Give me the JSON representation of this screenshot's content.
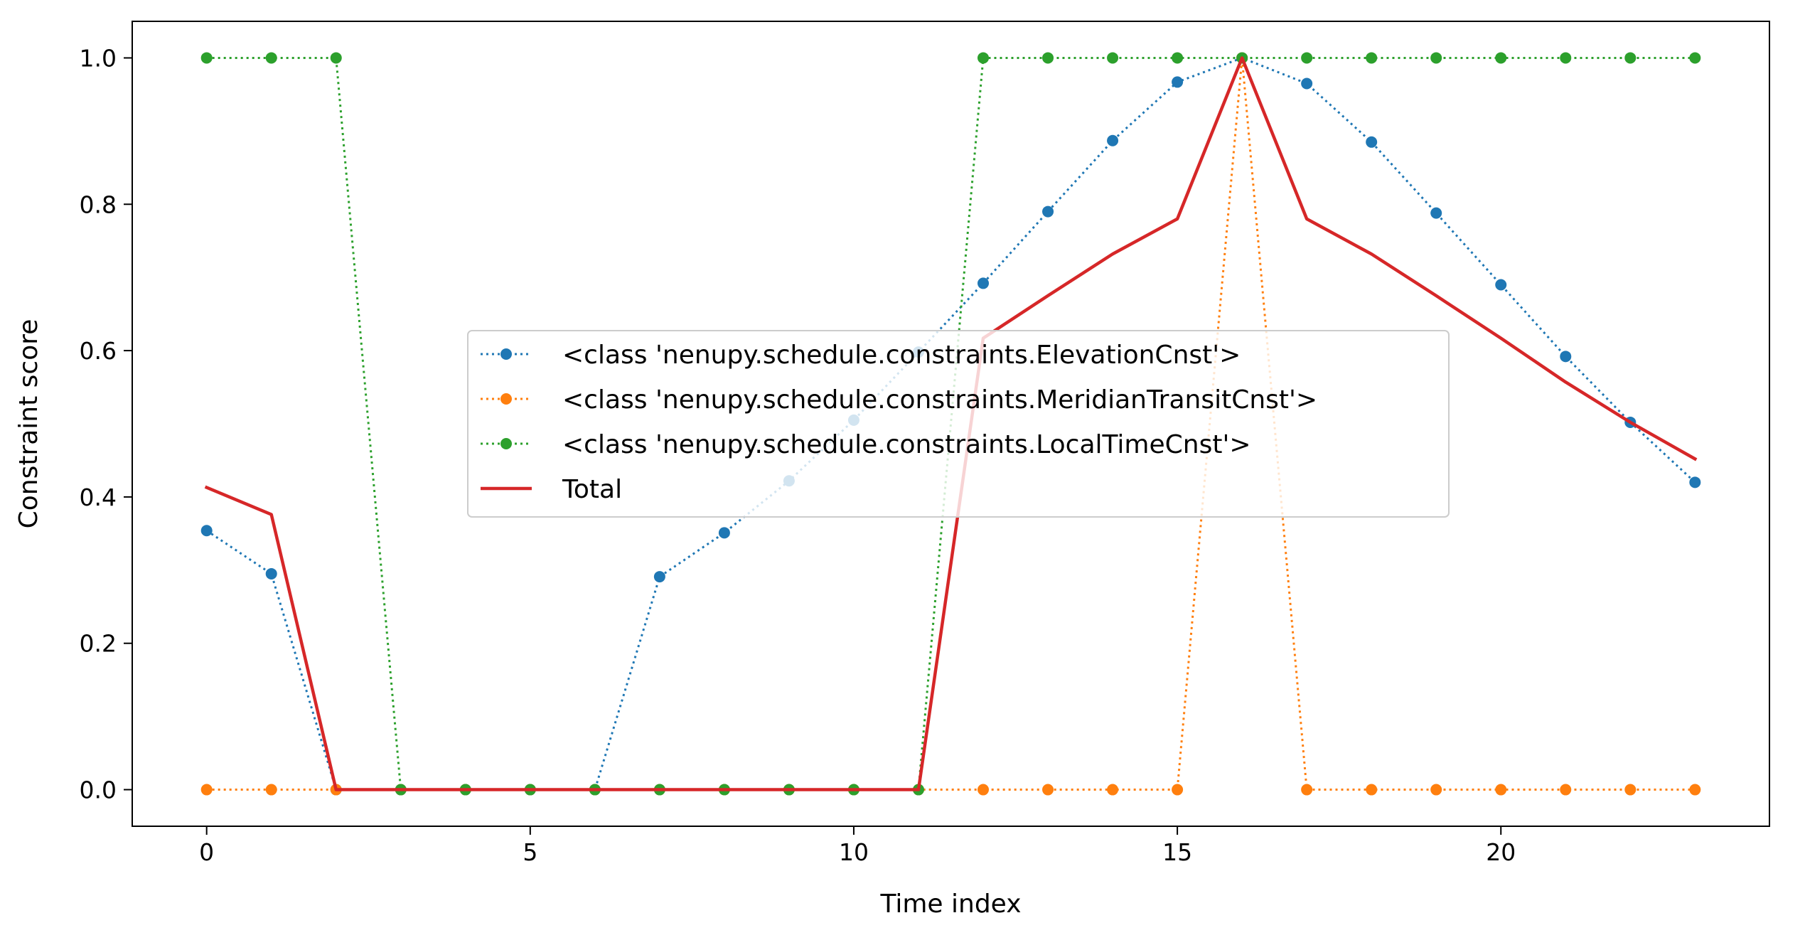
{
  "chart_data": {
    "type": "line",
    "title": "",
    "xlabel": "Time index",
    "ylabel": "Constraint score",
    "xlim": [
      -1.15,
      24.15
    ],
    "ylim": [
      -0.05,
      1.05
    ],
    "xticks": [
      0,
      5,
      10,
      15,
      20
    ],
    "xtick_labels": [
      "0",
      "5",
      "10",
      "15",
      "20"
    ],
    "yticks": [
      0.0,
      0.2,
      0.4,
      0.6,
      0.8,
      1.0
    ],
    "ytick_labels": [
      "0.0",
      "0.2",
      "0.4",
      "0.6",
      "0.8",
      "1.0"
    ],
    "grid": false,
    "legend_position": "center",
    "x": [
      0,
      1,
      2,
      3,
      4,
      5,
      6,
      7,
      8,
      9,
      10,
      11,
      12,
      13,
      14,
      15,
      16,
      17,
      18,
      19,
      20,
      21,
      22,
      23
    ],
    "series": [
      {
        "name": "<class 'nenupy.schedule.constraints.ElevationCnst'>",
        "color": "#1f77b4",
        "style": "dotted",
        "marker": true,
        "values": [
          0.354,
          0.295,
          0,
          0,
          0,
          0,
          0,
          0.291,
          0.351,
          0.422,
          0.505,
          0.598,
          0.692,
          0.79,
          0.887,
          0.967,
          1.0,
          0.965,
          0.885,
          0.788,
          0.69,
          0.592,
          0.502,
          0.42
        ]
      },
      {
        "name": "<class 'nenupy.schedule.constraints.MeridianTransitCnst'>",
        "color": "#ff7f0e",
        "style": "dotted",
        "marker": true,
        "values": [
          0,
          0,
          0,
          0,
          0,
          0,
          0,
          0,
          0,
          0,
          0,
          0,
          0,
          0,
          0,
          0,
          1.0,
          0,
          0,
          0,
          0,
          0,
          0,
          0
        ]
      },
      {
        "name": "<class 'nenupy.schedule.constraints.LocalTimeCnst'>",
        "color": "#2ca02c",
        "style": "dotted",
        "marker": true,
        "values": [
          1,
          1,
          1,
          0,
          0,
          0,
          0,
          0,
          0,
          0,
          0,
          0,
          1,
          1,
          1,
          1,
          1,
          1,
          1,
          1,
          1,
          1,
          1,
          1
        ]
      },
      {
        "name": "Total",
        "color": "#d62728",
        "style": "solid",
        "marker": false,
        "values": [
          0.413,
          0.376,
          0,
          0,
          0,
          0,
          0,
          0,
          0,
          0,
          0,
          0,
          0.617,
          0.675,
          0.732,
          0.78,
          1.0,
          0.78,
          0.732,
          0.675,
          0.617,
          0.557,
          0.502,
          0.452
        ]
      }
    ]
  }
}
